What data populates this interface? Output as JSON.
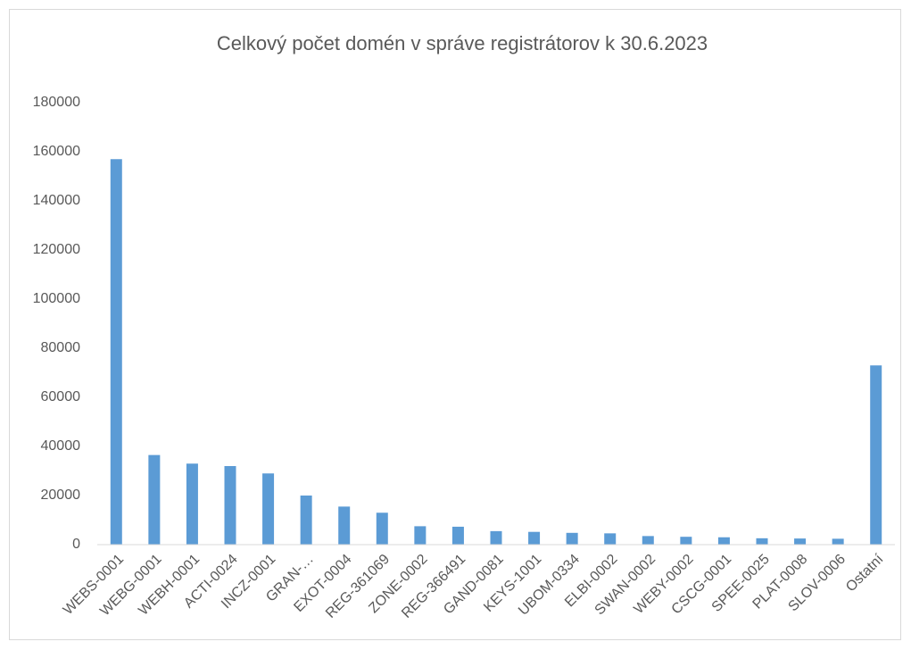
{
  "chart_data": {
    "type": "bar",
    "title": "Celkový počet domén v správe registrátorov k 30.6.2023",
    "categories": [
      "WEBS-0001",
      "WEBG-0001",
      "WEBH-0001",
      "ACTI-0024",
      "INCZ-0001",
      "GRAN-…",
      "EXOT-0004",
      "REG-361069",
      "ZONE-0002",
      "REG-366491",
      "GAND-0081",
      "KEYS-1001",
      "UBOM-0334",
      "ELBI-0002",
      "SWAN-0002",
      "WEBY-0002",
      "CSCG-0001",
      "SPEE-0025",
      "PLAT-0008",
      "SLOV-0006",
      "Ostatní"
    ],
    "values": [
      157000,
      36500,
      33000,
      32000,
      29000,
      20000,
      15500,
      13000,
      7500,
      7300,
      5500,
      5200,
      4800,
      4600,
      3500,
      3200,
      3000,
      2600,
      2500,
      2400,
      73000
    ],
    "color": "#5b9bd5",
    "ylim": [
      0,
      180000
    ],
    "yticks": [
      0,
      20000,
      40000,
      60000,
      80000,
      100000,
      120000,
      140000,
      160000,
      180000
    ],
    "grid": false
  }
}
